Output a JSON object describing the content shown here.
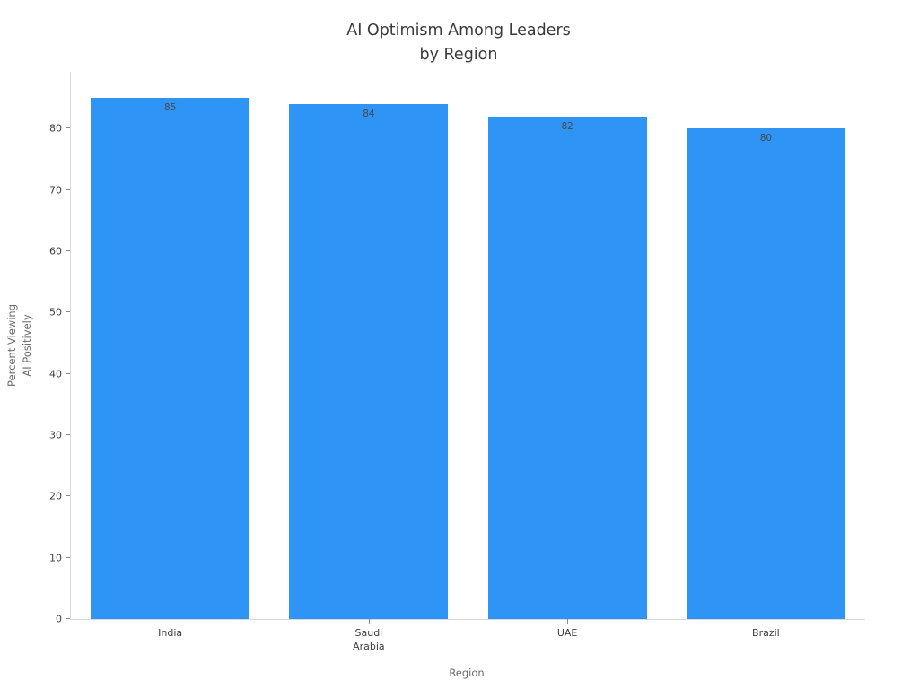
{
  "chart_data": {
    "type": "bar",
    "title": "AI Optimism Among Leaders by Region",
    "title_lines": [
      "AI Optimism Among Leaders",
      "by Region"
    ],
    "categories": [
      "India",
      "Saudi Arabia",
      "UAE",
      "Brazil"
    ],
    "category_label_lines": [
      [
        "India"
      ],
      [
        "Saudi",
        "Arabia"
      ],
      [
        "UAE"
      ],
      [
        "Brazil"
      ]
    ],
    "values": [
      85,
      84,
      82,
      80
    ],
    "value_labels": [
      "85",
      "84",
      "82",
      "80"
    ],
    "xlabel": "Region",
    "ylabel": "Percent Viewing AI Positively",
    "ylabel_lines": [
      "Percent Viewing",
      "AI Positively"
    ],
    "ylim": [
      0,
      89.25
    ],
    "yticks": [
      0,
      10,
      20,
      30,
      40,
      50,
      60,
      70,
      80
    ],
    "grid": false,
    "legend": null,
    "colors": {
      "bar": "#2E94F5",
      "title_text": "#3a3a3a",
      "tick_text": "#3d3d3d",
      "axis_title_text": "#6b6b6b",
      "value_label_text": "#4a4a4a",
      "spine": "#d9d9d9"
    }
  }
}
